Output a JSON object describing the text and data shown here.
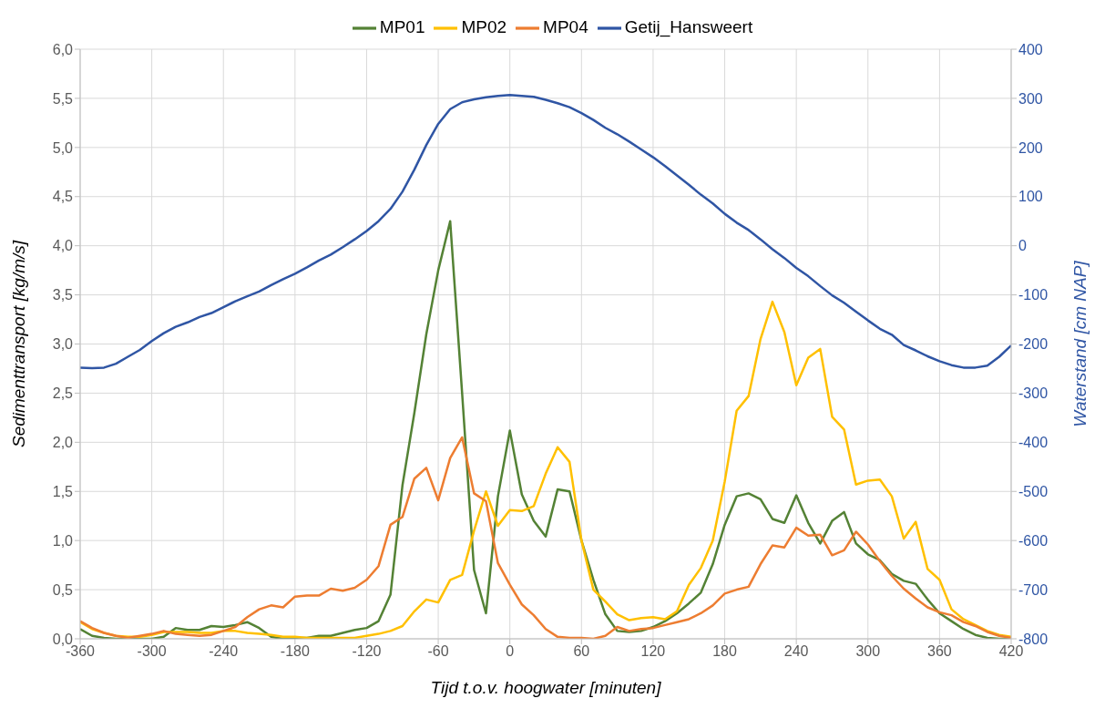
{
  "chart_data": {
    "type": "line",
    "xlabel": "Tijd t.o.v. hoogwater [minuten]",
    "ylabel": "Sedimenttransport [kg/m/s]",
    "y2label": "Waterstand [cm NAP]",
    "x": [
      -360,
      -350,
      -340,
      -330,
      -320,
      -310,
      -300,
      -290,
      -280,
      -270,
      -260,
      -250,
      -240,
      -230,
      -220,
      -210,
      -200,
      -190,
      -180,
      -170,
      -160,
      -150,
      -140,
      -130,
      -120,
      -110,
      -100,
      -90,
      -80,
      -70,
      -60,
      -50,
      -40,
      -30,
      -20,
      -10,
      0,
      10,
      20,
      30,
      40,
      50,
      60,
      70,
      80,
      90,
      100,
      110,
      120,
      130,
      140,
      150,
      160,
      170,
      180,
      190,
      200,
      210,
      220,
      230,
      240,
      250,
      260,
      270,
      280,
      290,
      300,
      310,
      320,
      330,
      340,
      350,
      360,
      370,
      380,
      390,
      400,
      410,
      420
    ],
    "series": [
      {
        "name": "MP01",
        "color": "#548235",
        "values": [
          0.1,
          0.03,
          0.01,
          0.0,
          0.0,
          0.0,
          0.0,
          0.02,
          0.11,
          0.09,
          0.09,
          0.13,
          0.12,
          0.14,
          0.17,
          0.11,
          0.02,
          0.0,
          0.01,
          0.01,
          0.03,
          0.03,
          0.06,
          0.09,
          0.11,
          0.18,
          0.45,
          1.56,
          2.3,
          3.1,
          3.75,
          4.25,
          2.5,
          0.7,
          0.26,
          1.45,
          2.12,
          1.47,
          1.2,
          1.04,
          1.52,
          1.5,
          1.0,
          0.6,
          0.25,
          0.08,
          0.07,
          0.08,
          0.12,
          0.18,
          0.26,
          0.36,
          0.47,
          0.76,
          1.16,
          1.45,
          1.48,
          1.42,
          1.22,
          1.18,
          1.46,
          1.18,
          0.97,
          1.2,
          1.29,
          0.97,
          0.86,
          0.8,
          0.66,
          0.59,
          0.56,
          0.4,
          0.26,
          0.18,
          0.1,
          0.04,
          0.01,
          0.0,
          0.0
        ]
      },
      {
        "name": "MP02",
        "color": "#ffc000",
        "values": [
          0.17,
          0.1,
          0.06,
          0.03,
          0.02,
          0.02,
          0.04,
          0.07,
          0.07,
          0.07,
          0.06,
          0.06,
          0.08,
          0.08,
          0.06,
          0.05,
          0.04,
          0.02,
          0.02,
          0.01,
          0.01,
          0.01,
          0.01,
          0.01,
          0.03,
          0.05,
          0.08,
          0.13,
          0.28,
          0.4,
          0.37,
          0.6,
          0.65,
          1.1,
          1.5,
          1.15,
          1.31,
          1.3,
          1.35,
          1.68,
          1.95,
          1.8,
          1.0,
          0.5,
          0.38,
          0.25,
          0.19,
          0.21,
          0.22,
          0.2,
          0.28,
          0.55,
          0.72,
          1.0,
          1.6,
          2.32,
          2.47,
          3.05,
          3.43,
          3.12,
          2.58,
          2.86,
          2.95,
          2.26,
          2.13,
          1.57,
          1.61,
          1.62,
          1.45,
          1.02,
          1.19,
          0.71,
          0.6,
          0.3,
          0.2,
          0.14,
          0.08,
          0.04,
          0.02
        ]
      },
      {
        "name": "MP04",
        "color": "#ed7d31",
        "values": [
          0.18,
          0.11,
          0.06,
          0.03,
          0.01,
          0.03,
          0.05,
          0.08,
          0.05,
          0.04,
          0.03,
          0.04,
          0.08,
          0.12,
          0.22,
          0.3,
          0.34,
          0.32,
          0.43,
          0.44,
          0.44,
          0.51,
          0.49,
          0.52,
          0.6,
          0.74,
          1.16,
          1.24,
          1.63,
          1.74,
          1.41,
          1.84,
          2.05,
          1.48,
          1.4,
          0.77,
          0.55,
          0.35,
          0.24,
          0.1,
          0.02,
          0.01,
          0.01,
          0.0,
          0.03,
          0.12,
          0.08,
          0.1,
          0.11,
          0.14,
          0.17,
          0.2,
          0.26,
          0.34,
          0.46,
          0.5,
          0.53,
          0.76,
          0.95,
          0.93,
          1.13,
          1.05,
          1.06,
          0.85,
          0.9,
          1.09,
          0.96,
          0.79,
          0.64,
          0.51,
          0.41,
          0.32,
          0.27,
          0.24,
          0.17,
          0.13,
          0.07,
          0.03,
          0.01
        ]
      },
      {
        "name": "Getij_Hansweert",
        "color": "#2f55a4",
        "axis": "y2",
        "values": [
          -248,
          -249,
          -248,
          -240,
          -226,
          -212,
          -194,
          -178,
          -165,
          -156,
          -145,
          -137,
          -125,
          -113,
          -103,
          -93,
          -80,
          -68,
          -57,
          -44,
          -30,
          -18,
          -3,
          13,
          30,
          50,
          75,
          110,
          155,
          205,
          248,
          278,
          292,
          298,
          302,
          305,
          307,
          305,
          303,
          297,
          290,
          282,
          270,
          256,
          240,
          227,
          212,
          196,
          180,
          162,
          143,
          124,
          104,
          86,
          65,
          47,
          32,
          13,
          -7,
          -25,
          -45,
          -62,
          -82,
          -101,
          -116,
          -134,
          -152,
          -169,
          -181,
          -202,
          -213,
          -225,
          -235,
          -243,
          -248,
          -248,
          -244,
          -226,
          -203
        ]
      }
    ],
    "xlim": [
      -360,
      420
    ],
    "xticks": [
      -360,
      -300,
      -240,
      -180,
      -120,
      -60,
      0,
      60,
      120,
      180,
      240,
      300,
      360,
      420
    ],
    "ylim": [
      0,
      6
    ],
    "yticks": [
      {
        "value": 0,
        "label": "0,0"
      },
      {
        "value": 0.5,
        "label": "0,5"
      },
      {
        "value": 1,
        "label": "1,0"
      },
      {
        "value": 1.5,
        "label": "1,5"
      },
      {
        "value": 2,
        "label": "2,0"
      },
      {
        "value": 2.5,
        "label": "2,5"
      },
      {
        "value": 3,
        "label": "3,0"
      },
      {
        "value": 3.5,
        "label": "3,5"
      },
      {
        "value": 4,
        "label": "4,0"
      },
      {
        "value": 4.5,
        "label": "4,5"
      },
      {
        "value": 5,
        "label": "5,0"
      },
      {
        "value": 5.5,
        "label": "5,5"
      },
      {
        "value": 6,
        "label": "6,0"
      }
    ],
    "y2lim": [
      -800,
      400
    ],
    "y2ticks": [
      -800,
      -700,
      -600,
      -500,
      -400,
      -300,
      -200,
      -100,
      0,
      100,
      200,
      300,
      400
    ],
    "grid": true,
    "legend": "top",
    "marker": "none",
    "line_style": "solid"
  }
}
